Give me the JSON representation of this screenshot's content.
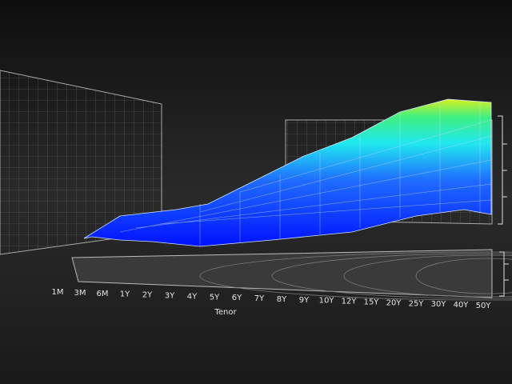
{
  "chart_data": {
    "type": "surface",
    "categories": [
      "1M",
      "3M",
      "6M",
      "1Y",
      "2Y",
      "3Y",
      "4Y",
      "5Y",
      "6Y",
      "7Y",
      "8Y",
      "9Y",
      "10Y",
      "12Y",
      "15Y",
      "20Y",
      "25Y",
      "30Y",
      "40Y",
      "50Y"
    ],
    "x_label": "Tenor"
  }
}
